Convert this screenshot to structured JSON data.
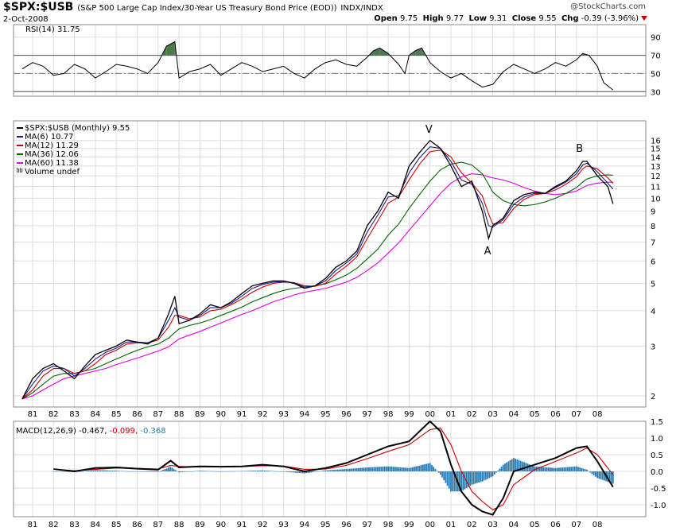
{
  "header": {
    "symbol": "$SPX:$USB",
    "description": "(S&P 500 Large Cap Index/30-Year US Treasury Bond Price (EOD))",
    "exchange": "INDX/INDX",
    "date": "2-Oct-2008",
    "brand": "@StockCharts.com",
    "open_label": "Open",
    "open": "9.75",
    "high_label": "High",
    "high": "9.77",
    "low_label": "Low",
    "low": "9.31",
    "close_label": "Close",
    "close": "9.55",
    "chg_label": "Chg",
    "chg": "-0.39 (-3.96%)"
  },
  "rsi_panel": {
    "label": "RSI(14) 31.75",
    "ticks": [
      "90",
      "70",
      "50",
      "30"
    ],
    "overbought": 70,
    "oversold": 30,
    "mid": 50,
    "colors": {
      "line": "#000000",
      "fill": "#4d7a4d"
    }
  },
  "main_panel": {
    "legend": [
      {
        "text": "$SPX:$USB (Monthly) 9.55",
        "color": "#000000"
      },
      {
        "text": "MA(6) 10.77",
        "color": "#1a1a8c"
      },
      {
        "text": "MA(12) 11.29",
        "color": "#cc0000"
      },
      {
        "text": "MA(36) 12.06",
        "color": "#006600"
      },
      {
        "text": "MA(60) 11.38",
        "color": "#e000e0"
      },
      {
        "text": "Volume undef",
        "color": "#555555"
      }
    ],
    "annotations": [
      "V",
      "A",
      "B"
    ],
    "ticks": [
      "16",
      "15",
      "14",
      "13",
      "12",
      "11",
      "10",
      "9",
      "8",
      "7",
      "6",
      "5",
      "4",
      "3",
      "2"
    ]
  },
  "macd_panel": {
    "label": "MACD(12,26,9)",
    "macd_value": "-0.467,",
    "signal_value": "-0.099,",
    "hist_value": "-0.368",
    "ticks": [
      "1.5",
      "1.0",
      "0.5",
      "0.0",
      "-0.5",
      "-1.0"
    ],
    "colors": {
      "macd": "#000000",
      "signal": "#cc0000",
      "hist": "#2a7ab0"
    }
  },
  "x_axis": {
    "years": [
      "81",
      "82",
      "83",
      "84",
      "85",
      "86",
      "87",
      "88",
      "89",
      "90",
      "91",
      "92",
      "93",
      "94",
      "95",
      "96",
      "97",
      "98",
      "99",
      "00",
      "01",
      "02",
      "03",
      "04",
      "05",
      "06",
      "07",
      "08"
    ]
  },
  "chart_data": {
    "type": "line",
    "scale": "log",
    "ylim": [
      1.8,
      17.5
    ],
    "x": [
      1980.5,
      1981,
      1981.5,
      1982,
      1982.5,
      1983,
      1983.5,
      1984,
      1984.5,
      1985,
      1985.5,
      1986,
      1986.5,
      1987,
      1987.5,
      1987.8,
      1988,
      1988.5,
      1989,
      1989.5,
      1990,
      1990.5,
      1991,
      1991.5,
      1992,
      1992.5,
      1993,
      1993.5,
      1994,
      1994.5,
      1995,
      1995.5,
      1996,
      1996.5,
      1997,
      1997.5,
      1998,
      1998.5,
      1999,
      1999.5,
      2000,
      2000.5,
      2001,
      2001.5,
      2002,
      2002.5,
      2002.8,
      2003,
      2003.5,
      2004,
      2004.5,
      2005,
      2005.5,
      2006,
      2006.5,
      2007,
      2007.3,
      2007.5,
      2008,
      2008.5,
      2008.75
    ],
    "series": [
      {
        "name": "$SPX:$USB (Monthly) 9.55",
        "values": [
          1.95,
          2.3,
          2.5,
          2.6,
          2.45,
          2.3,
          2.55,
          2.8,
          2.9,
          3.0,
          3.15,
          3.1,
          3.05,
          3.2,
          3.9,
          4.5,
          3.6,
          3.7,
          3.9,
          4.2,
          4.1,
          4.3,
          4.6,
          4.9,
          5.0,
          5.1,
          5.1,
          5.0,
          4.8,
          4.9,
          5.2,
          5.7,
          6.0,
          6.5,
          8.0,
          9.0,
          10.5,
          10.0,
          13.0,
          14.5,
          16.0,
          15.0,
          13.0,
          11.0,
          11.5,
          9.0,
          7.2,
          8.0,
          8.5,
          9.8,
          10.3,
          10.5,
          10.4,
          11.0,
          11.5,
          12.5,
          13.5,
          13.5,
          12.0,
          11.0,
          9.55
        ]
      },
      {
        "name": "MA(6) 10.77",
        "values": [
          1.95,
          2.2,
          2.45,
          2.55,
          2.5,
          2.35,
          2.5,
          2.7,
          2.85,
          2.95,
          3.1,
          3.1,
          3.08,
          3.2,
          3.7,
          4.1,
          3.8,
          3.7,
          3.85,
          4.1,
          4.1,
          4.25,
          4.5,
          4.8,
          4.95,
          5.05,
          5.08,
          5.02,
          4.85,
          4.9,
          5.1,
          5.55,
          5.9,
          6.35,
          7.6,
          8.7,
          10.1,
          10.2,
          12.3,
          13.9,
          15.2,
          15.0,
          13.5,
          11.6,
          11.2,
          9.6,
          8.0,
          7.9,
          8.4,
          9.5,
          10.1,
          10.4,
          10.4,
          10.9,
          11.4,
          12.2,
          13.1,
          13.3,
          12.4,
          11.3,
          10.77
        ]
      },
      {
        "name": "MA(12) 11.29",
        "values": [
          1.95,
          2.1,
          2.35,
          2.5,
          2.5,
          2.4,
          2.45,
          2.6,
          2.8,
          2.9,
          3.05,
          3.08,
          3.08,
          3.15,
          3.5,
          3.85,
          3.85,
          3.75,
          3.8,
          4.0,
          4.05,
          4.2,
          4.4,
          4.65,
          4.85,
          5.0,
          5.05,
          5.03,
          4.9,
          4.88,
          5.0,
          5.4,
          5.75,
          6.2,
          7.2,
          8.3,
          9.6,
          10.1,
          11.6,
          13.2,
          14.6,
          14.8,
          14.0,
          12.3,
          11.3,
          10.2,
          8.8,
          8.1,
          8.2,
          9.2,
          9.9,
          10.3,
          10.4,
          10.7,
          11.2,
          11.9,
          12.7,
          13.0,
          12.7,
          11.8,
          11.29
        ]
      },
      {
        "name": "MA(36) 12.06",
        "values": [
          1.95,
          2.05,
          2.2,
          2.35,
          2.4,
          2.4,
          2.45,
          2.5,
          2.6,
          2.7,
          2.8,
          2.9,
          2.98,
          3.05,
          3.2,
          3.35,
          3.45,
          3.55,
          3.62,
          3.72,
          3.85,
          3.98,
          4.12,
          4.3,
          4.45,
          4.6,
          4.72,
          4.8,
          4.85,
          4.9,
          4.98,
          5.15,
          5.35,
          5.65,
          6.1,
          6.6,
          7.4,
          8.1,
          9.2,
          10.3,
          11.5,
          12.6,
          13.2,
          13.4,
          13.1,
          12.2,
          11.2,
          10.5,
          9.8,
          9.5,
          9.4,
          9.5,
          9.7,
          10.0,
          10.4,
          10.9,
          11.4,
          11.7,
          12.0,
          12.1,
          12.06
        ]
      },
      {
        "name": "MA(60) 11.38",
        "values": [
          1.95,
          2.0,
          2.1,
          2.2,
          2.3,
          2.35,
          2.4,
          2.45,
          2.5,
          2.58,
          2.65,
          2.72,
          2.8,
          2.88,
          2.98,
          3.1,
          3.18,
          3.28,
          3.38,
          3.5,
          3.62,
          3.75,
          3.88,
          4.0,
          4.15,
          4.3,
          4.42,
          4.55,
          4.65,
          4.72,
          4.8,
          4.92,
          5.05,
          5.25,
          5.55,
          5.9,
          6.4,
          6.95,
          7.7,
          8.5,
          9.4,
          10.4,
          11.3,
          11.9,
          12.2,
          12.1,
          11.9,
          11.8,
          11.6,
          11.3,
          10.9,
          10.6,
          10.4,
          10.3,
          10.4,
          10.6,
          10.9,
          11.1,
          11.3,
          11.4,
          11.38
        ]
      }
    ],
    "rsi": {
      "x": [
        1980.5,
        1981,
        1981.5,
        1982,
        1982.5,
        1983,
        1983.5,
        1984,
        1984.5,
        1985,
        1985.5,
        1986,
        1986.5,
        1987,
        1987.4,
        1987.8,
        1988,
        1988.5,
        1989,
        1989.5,
        1990,
        1990.5,
        1991,
        1991.5,
        1992,
        1992.5,
        1993,
        1993.5,
        1994,
        1994.5,
        1995,
        1995.5,
        1996,
        1996.5,
        1997,
        1997.3,
        1997.6,
        1998,
        1998.5,
        1998.8,
        1999,
        1999.3,
        1999.6,
        2000,
        2000.5,
        2001,
        2001.5,
        2002,
        2002.5,
        2003,
        2003.5,
        2004,
        2004.5,
        2005,
        2005.5,
        2006,
        2006.5,
        2007,
        2007.3,
        2007.6,
        2008,
        2008.3,
        2008.75
      ],
      "values": [
        55,
        62,
        58,
        48,
        50,
        60,
        55,
        45,
        52,
        60,
        58,
        55,
        50,
        62,
        80,
        85,
        45,
        52,
        55,
        60,
        48,
        55,
        62,
        58,
        52,
        55,
        58,
        50,
        45,
        55,
        62,
        65,
        60,
        58,
        68,
        75,
        78,
        72,
        60,
        50,
        70,
        75,
        78,
        62,
        52,
        45,
        50,
        42,
        35,
        38,
        52,
        60,
        55,
        50,
        55,
        62,
        58,
        65,
        72,
        70,
        58,
        40,
        31.75
      ]
    },
    "macd": {
      "x": [
        1982,
        1983,
        1984,
        1985,
        1986,
        1987,
        1987.6,
        1988,
        1989,
        1990,
        1991,
        1992,
        1993,
        1994,
        1995,
        1996,
        1997,
        1998,
        1999,
        2000,
        2000.5,
        2001,
        2001.5,
        2002,
        2002.5,
        2003,
        2003.5,
        2004,
        2005,
        2006,
        2007,
        2007.5,
        2008,
        2008.75
      ],
      "macd": [
        0.07,
        0.0,
        0.1,
        0.12,
        0.08,
        0.05,
        0.32,
        0.12,
        0.15,
        0.14,
        0.15,
        0.2,
        0.15,
        0.0,
        0.1,
        0.25,
        0.5,
        0.75,
        0.9,
        1.5,
        1.2,
        0.2,
        -0.6,
        -1.0,
        -1.2,
        -1.3,
        -0.8,
        0.0,
        0.2,
        0.4,
        0.7,
        0.75,
        0.3,
        -0.467
      ],
      "signal": [
        0.07,
        0.02,
        0.06,
        0.1,
        0.09,
        0.07,
        0.18,
        0.15,
        0.13,
        0.14,
        0.14,
        0.17,
        0.16,
        0.06,
        0.07,
        0.18,
        0.38,
        0.6,
        0.8,
        1.25,
        1.3,
        0.8,
        0.0,
        -0.6,
        -0.9,
        -1.15,
        -1.0,
        -0.4,
        0.05,
        0.3,
        0.55,
        0.7,
        0.5,
        -0.099
      ]
    }
  }
}
